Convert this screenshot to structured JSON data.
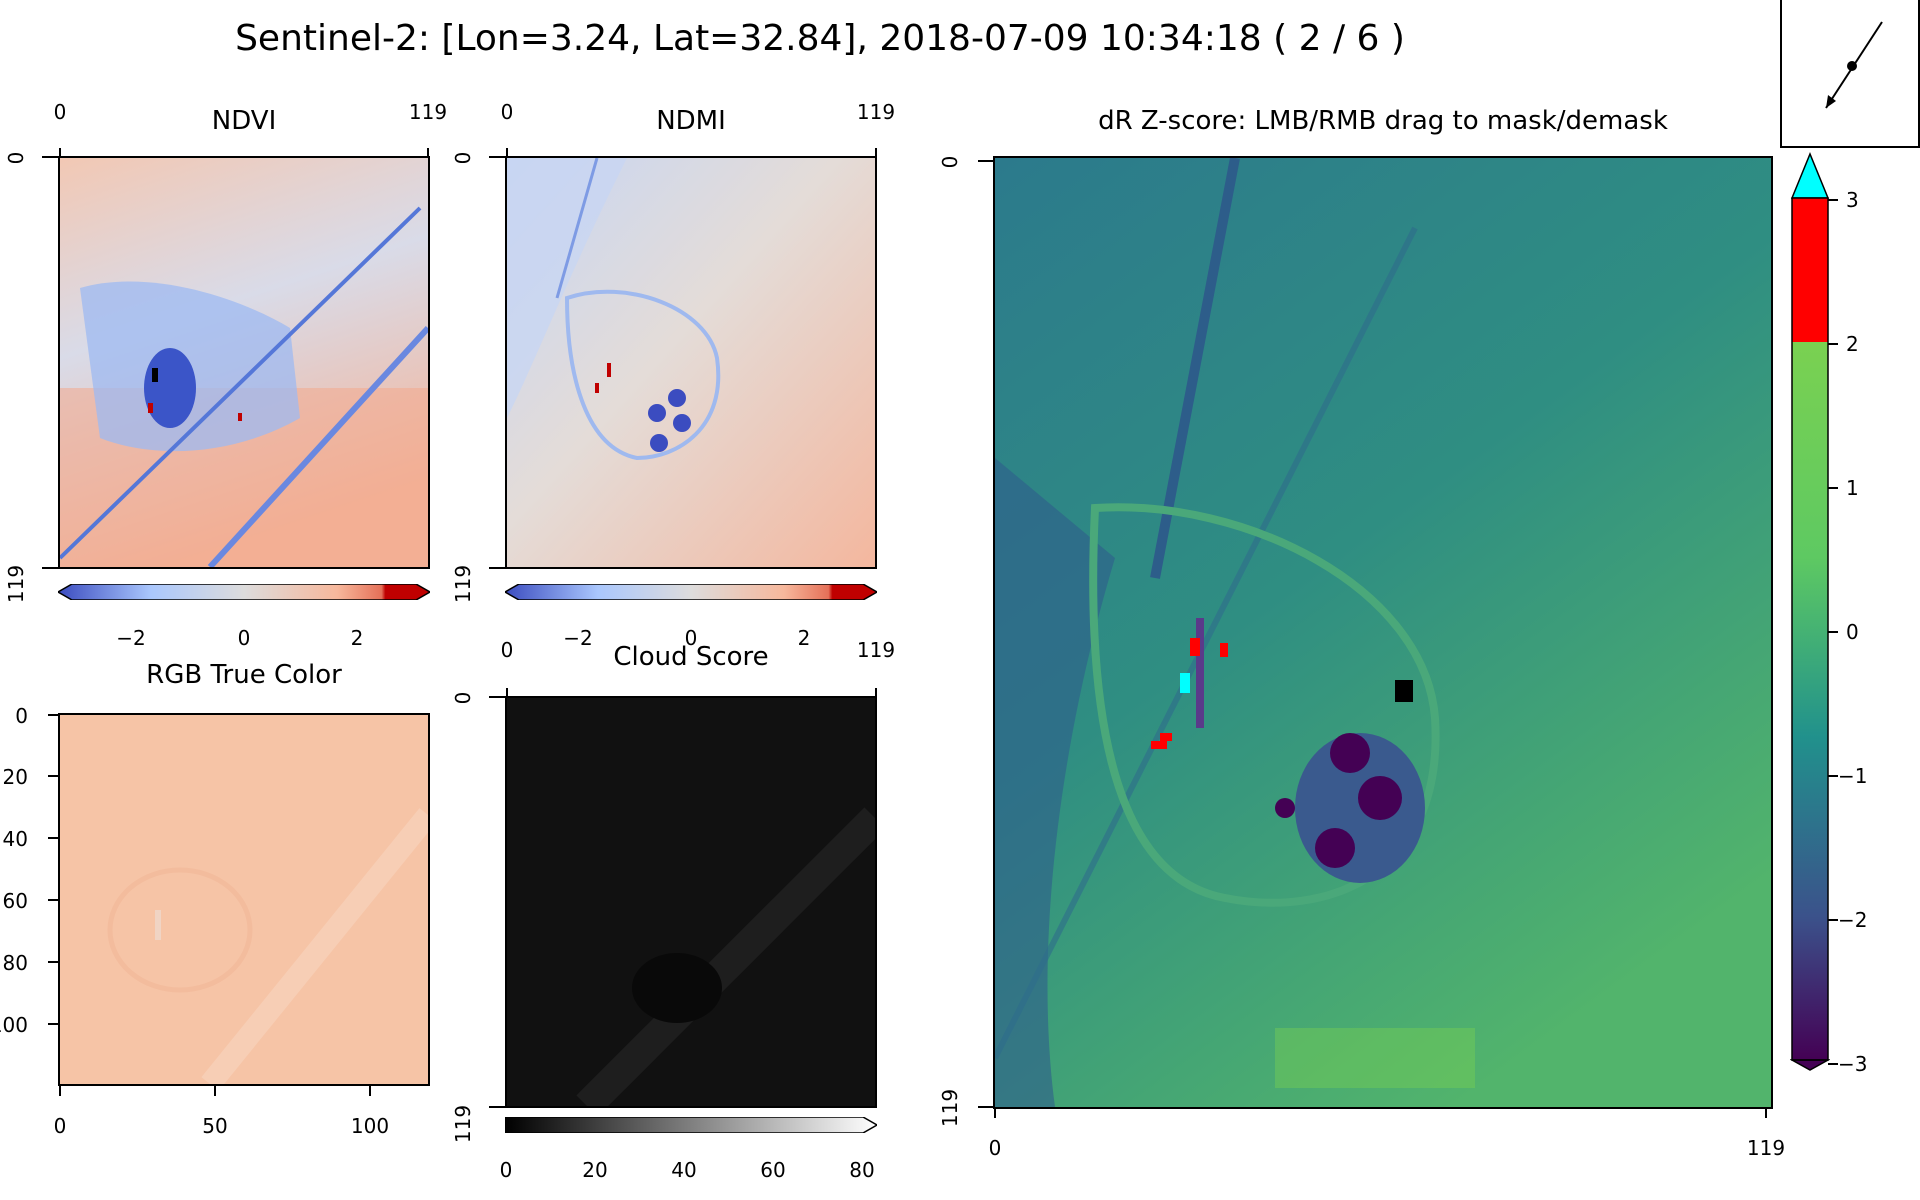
{
  "figure": {
    "title": "Sentinel-2: [Lon=3.24, Lat=32.84], 2018-07-09 10:34:18 ( 2 / 6 )"
  },
  "panels": {
    "ndvi": {
      "title": "NDVI",
      "x_ticks": [
        "0",
        "119"
      ],
      "y_ticks": [
        "0",
        "119"
      ],
      "colorbar_ticks": [
        "−2",
        "0",
        "2"
      ],
      "colormap": [
        "#3b4cc0",
        "#aac7fd",
        "#dddcdc",
        "#f7b89c",
        "#e57058",
        "#c00000"
      ]
    },
    "ndmi": {
      "title": "NDMI",
      "x_ticks": [
        "0",
        "119"
      ],
      "y_ticks": [
        "0",
        "119"
      ],
      "colorbar_ticks": [
        "−2",
        "0",
        "2"
      ],
      "colormap": [
        "#3b4cc0",
        "#aac7fd",
        "#dddcdc",
        "#f7b89c",
        "#e57058",
        "#c00000"
      ]
    },
    "rgb": {
      "title": "RGB True Color",
      "x_ticks": [
        "0",
        "50",
        "100"
      ],
      "y_ticks": [
        "0",
        "20",
        "40",
        "60",
        "80",
        "100"
      ],
      "colors": [
        "#f5c2a4",
        "#f8d3bc"
      ]
    },
    "cloud": {
      "title": "Cloud Score",
      "x_ticks": [
        "0",
        "119"
      ],
      "y_ticks": [
        "0",
        "119"
      ],
      "colorbar_ticks": [
        "0",
        "20",
        "40",
        "60",
        "80"
      ],
      "colors": [
        "#0a0a0a",
        "#1f1f1f"
      ]
    },
    "zscore": {
      "title": "dR Z-score: LMB/RMB drag to mask/demask",
      "x_ticks": [
        "0",
        "119"
      ],
      "y_ticks": [
        "0",
        "119"
      ],
      "colorbar_ticks": [
        "3",
        "2",
        "1",
        "0",
        "−1",
        "−2",
        "−3"
      ],
      "colors": {
        "over": "#00ffff",
        "high": "#ff0000",
        "viridis": [
          "#440154",
          "#3b528b",
          "#21918c",
          "#5ec962",
          "#7ad151"
        ],
        "image": [
          "#2a788e",
          "#2f8f7f",
          "#34a076",
          "#5bb86a"
        ]
      }
    }
  },
  "compass": {
    "icon": "compass-needle-icon"
  }
}
